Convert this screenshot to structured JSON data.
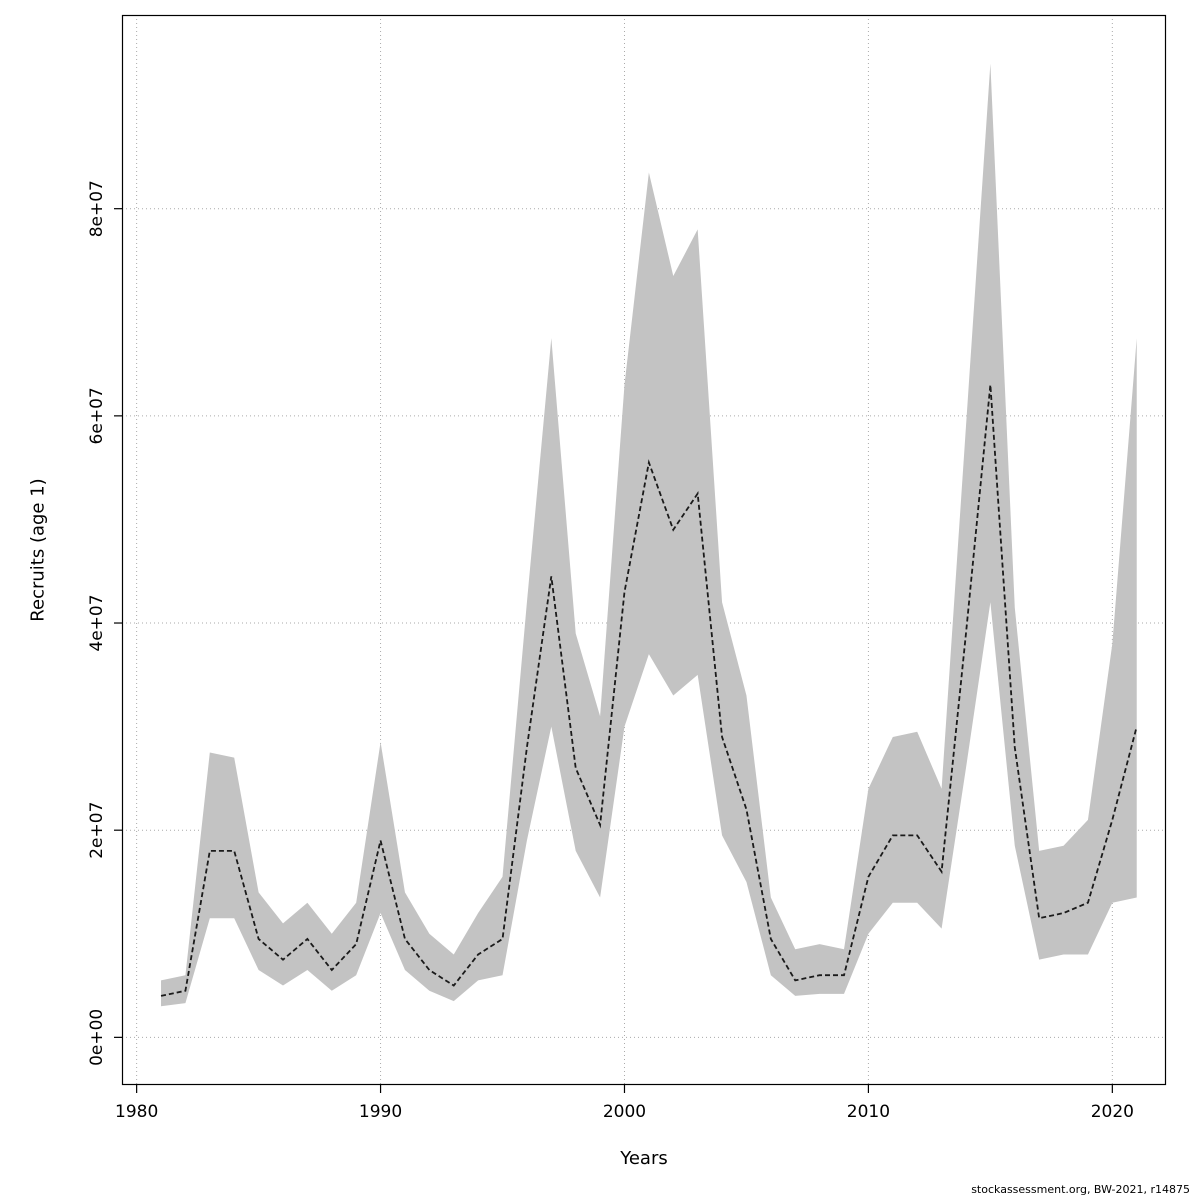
{
  "figure": {
    "footer": "stockassessment.org, BW-2021, r14875"
  },
  "chart_data": {
    "type": "line",
    "title": "",
    "xlabel": "Years",
    "ylabel": "Recruits (age 1)",
    "legend_position": "none",
    "grid": true,
    "x_range": [
      1979.4,
      2022.2
    ],
    "y_range": [
      -4600000,
      98700000
    ],
    "x_ticks": [
      1980,
      1990,
      2000,
      2010,
      2020
    ],
    "x_tick_labels": [
      "1980",
      "1990",
      "2000",
      "2010",
      "2020"
    ],
    "y_ticks": [
      0,
      20000000,
      40000000,
      60000000,
      80000000
    ],
    "y_tick_labels": [
      "0e+00",
      "2e+07",
      "4e+07",
      "6e+07",
      "8e+07"
    ],
    "years": [
      1981,
      1982,
      1983,
      1984,
      1985,
      1986,
      1987,
      1988,
      1989,
      1990,
      1991,
      1992,
      1993,
      1994,
      1995,
      1996,
      1997,
      1998,
      1999,
      2000,
      2001,
      2002,
      2003,
      2004,
      2005,
      2006,
      2007,
      2008,
      2009,
      2010,
      2011,
      2012,
      2013,
      2014,
      2015,
      2016,
      2017,
      2018,
      2019,
      2020,
      2021
    ],
    "series": [
      {
        "name": "recruits-median",
        "style": "dashed-black"
      },
      {
        "name": "confidence-band",
        "style": "gray-filled"
      }
    ],
    "median": [
      4000000,
      4500000,
      18000000,
      18000000,
      9500000,
      7500000,
      9500000,
      6500000,
      9000000,
      19000000,
      9500000,
      6500000,
      5000000,
      8000000,
      9500000,
      28000000,
      44500000,
      26000000,
      20500000,
      43000000,
      55500000,
      49000000,
      52500000,
      29000000,
      22000000,
      9500000,
      5500000,
      6000000,
      6000000,
      15500000,
      19500000,
      19500000,
      16000000,
      39000000,
      63000000,
      28000000,
      11500000,
      12000000,
      13000000,
      21000000,
      30000000
    ],
    "lower": [
      3000000,
      3300000,
      11500000,
      11500000,
      6500000,
      5000000,
      6500000,
      4500000,
      6000000,
      12000000,
      6500000,
      4500000,
      3500000,
      5500000,
      6000000,
      19000000,
      30000000,
      18000000,
      13500000,
      30000000,
      37000000,
      33000000,
      35000000,
      19500000,
      15000000,
      6000000,
      4000000,
      4200000,
      4200000,
      10000000,
      13000000,
      13000000,
      10500000,
      26000000,
      42000000,
      18500000,
      7500000,
      8000000,
      8000000,
      13000000,
      13500000
    ],
    "upper": [
      5500000,
      6000000,
      27500000,
      27000000,
      14000000,
      11000000,
      13000000,
      10000000,
      13000000,
      28500000,
      14000000,
      10000000,
      8000000,
      12000000,
      15500000,
      42000000,
      67500000,
      39000000,
      31000000,
      63000000,
      83500000,
      73500000,
      78000000,
      42000000,
      33000000,
      13500000,
      8500000,
      9000000,
      8500000,
      24000000,
      29000000,
      29500000,
      24000000,
      59000000,
      94000000,
      41500000,
      18000000,
      18500000,
      21000000,
      38000000,
      67500000
    ],
    "colors": {
      "band": "#c3c3c3",
      "line": "#1a1a1a",
      "grid": "#aaaaaa",
      "axis": "#000000",
      "background": "#ffffff"
    }
  }
}
